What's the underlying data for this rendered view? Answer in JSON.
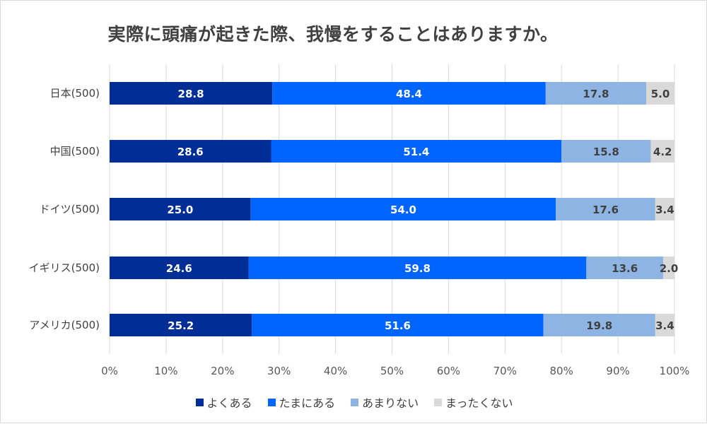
{
  "chart_data": {
    "type": "bar",
    "orientation": "horizontal",
    "stacked": true,
    "title": "実際に頭痛が起きた際、我慢をすることはありますか。",
    "categories": [
      "日本(500)",
      "中国(500)",
      "ドイツ(500)",
      "イギリス(500)",
      "アメリカ(500)"
    ],
    "series": [
      {
        "name": "よくある",
        "color": "#002D96",
        "label_color": "#ffffff",
        "values": [
          28.8,
          28.6,
          25.0,
          24.6,
          25.2
        ]
      },
      {
        "name": "たまにある",
        "color": "#0064FF",
        "label_color": "#ffffff",
        "values": [
          48.4,
          51.4,
          54.0,
          59.8,
          51.6
        ]
      },
      {
        "name": "あまりない",
        "color": "#8EB4E3",
        "label_color": "#404040",
        "values": [
          17.8,
          15.8,
          17.6,
          13.6,
          19.8
        ]
      },
      {
        "name": "まったくない",
        "color": "#D9D9D9",
        "label_color": "#404040",
        "values": [
          5.0,
          4.2,
          3.4,
          2.0,
          3.4
        ]
      }
    ],
    "xlim": [
      0,
      100
    ],
    "xticks": [
      "0%",
      "10%",
      "20%",
      "30%",
      "40%",
      "50%",
      "60%",
      "70%",
      "80%",
      "90%",
      "100%"
    ],
    "xlabel": "",
    "ylabel": "",
    "grid": "vertical",
    "legend_position": "bottom"
  }
}
